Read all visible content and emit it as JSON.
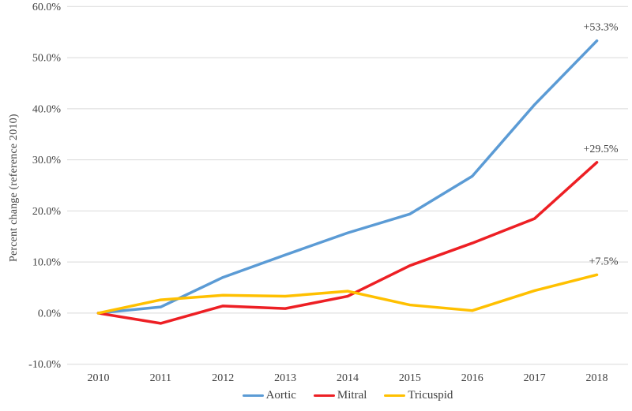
{
  "chart_data": {
    "type": "line",
    "title": "",
    "xlabel": "",
    "ylabel": "Percent change (reference 2010)",
    "categories": [
      "2010",
      "2011",
      "2012",
      "2013",
      "2014",
      "2015",
      "2016",
      "2017",
      "2018"
    ],
    "ylim": [
      -10,
      60
    ],
    "ytick_step": 10,
    "ytick_labels": [
      "60.0%",
      "50.0%",
      "40.0%",
      "30.0%",
      "20.0%",
      "10.0%",
      "0.0%",
      "-10.0%"
    ],
    "grid": "horizontal",
    "legend_position": "bottom-center",
    "gridline_color": "#d9d9d9",
    "text_color": "#404040",
    "series": [
      {
        "name": "Aortic",
        "color": "#5b9bd5",
        "values": [
          0.0,
          1.2,
          7.0,
          11.4,
          15.7,
          19.4,
          26.8,
          40.8,
          53.3
        ],
        "end_label": "+53.3%"
      },
      {
        "name": "Mitral",
        "color": "#ed1f24",
        "values": [
          0.0,
          -2.0,
          1.4,
          0.9,
          3.3,
          9.3,
          13.7,
          18.5,
          29.5
        ],
        "end_label": "+29.5%"
      },
      {
        "name": "Tricuspid",
        "color": "#ffc000",
        "values": [
          0.0,
          2.6,
          3.5,
          3.3,
          4.3,
          1.6,
          0.5,
          4.4,
          7.5
        ],
        "end_label": "+7.5%"
      }
    ]
  }
}
